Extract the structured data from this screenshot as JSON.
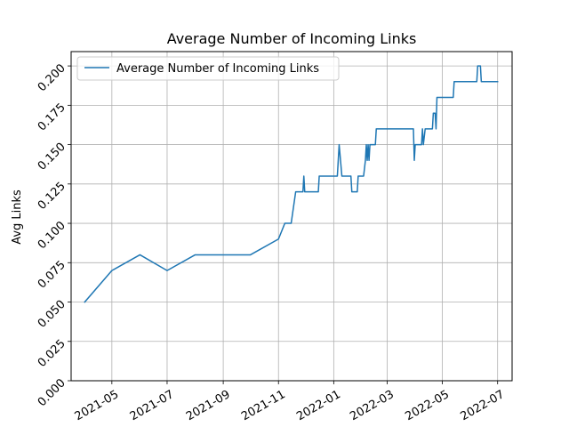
{
  "chart_data": {
    "type": "line",
    "title": "Average Number of Incoming Links",
    "xlabel": "",
    "ylabel": "Avg Links",
    "x_is_date": true,
    "xlim": [
      "2021-03-17",
      "2022-07-17"
    ],
    "ylim": [
      0.0,
      0.2091
    ],
    "grid": true,
    "legend_location": "top-left",
    "x_ticks": [
      "2021-05-01",
      "2021-07-01",
      "2021-09-01",
      "2021-11-01",
      "2022-01-01",
      "2022-03-01",
      "2022-05-01",
      "2022-07-01"
    ],
    "x_tick_labels": [
      "2021-05",
      "2021-07",
      "2021-09",
      "2021-11",
      "2022-01",
      "2022-03",
      "2022-05",
      "2022-07"
    ],
    "y_ticks": [
      0.0,
      0.025,
      0.05,
      0.075,
      0.1,
      0.125,
      0.15,
      0.175,
      0.2
    ],
    "y_tick_labels": [
      "0.000",
      "0.025",
      "0.050",
      "0.075",
      "0.100",
      "0.125",
      "0.150",
      "0.175",
      "0.200"
    ],
    "series": [
      {
        "name": "Average Number of Incoming Links",
        "color": "#1f77b4",
        "x": [
          "2021-04-01",
          "2021-05-01",
          "2021-06-01",
          "2021-07-01",
          "2021-08-01",
          "2021-10-01",
          "2021-11-01",
          "2021-11-08",
          "2021-11-15",
          "2021-11-20",
          "2021-11-28",
          "2021-11-29",
          "2021-11-30",
          "2021-12-01",
          "2021-12-15",
          "2021-12-16",
          "2021-12-17",
          "2022-01-05",
          "2022-01-06",
          "2022-01-07",
          "2022-01-10",
          "2022-01-20",
          "2022-01-21",
          "2022-01-27",
          "2022-01-28",
          "2022-02-03",
          "2022-02-05",
          "2022-02-06",
          "2022-02-07",
          "2022-02-08",
          "2022-02-09",
          "2022-02-10",
          "2022-02-11",
          "2022-02-12",
          "2022-02-16",
          "2022-02-17",
          "2022-02-28",
          "2022-03-01",
          "2022-03-30",
          "2022-03-31",
          "2022-04-01",
          "2022-04-08",
          "2022-04-09",
          "2022-04-10",
          "2022-04-12",
          "2022-04-13",
          "2022-04-20",
          "2022-04-21",
          "2022-04-23",
          "2022-04-24",
          "2022-04-25",
          "2022-04-28",
          "2022-05-13",
          "2022-05-14",
          "2022-06-08",
          "2022-06-09",
          "2022-06-12",
          "2022-06-13",
          "2022-07-01"
        ],
        "y": [
          0.05,
          0.07,
          0.08,
          0.07,
          0.08,
          0.08,
          0.09,
          0.1,
          0.1,
          0.12,
          0.12,
          0.13,
          0.12,
          0.12,
          0.12,
          0.13,
          0.13,
          0.13,
          0.14,
          0.15,
          0.13,
          0.13,
          0.12,
          0.12,
          0.13,
          0.13,
          0.14,
          0.15,
          0.14,
          0.15,
          0.14,
          0.15,
          0.15,
          0.15,
          0.15,
          0.16,
          0.16,
          0.16,
          0.16,
          0.14,
          0.15,
          0.15,
          0.16,
          0.15,
          0.16,
          0.16,
          0.16,
          0.17,
          0.17,
          0.16,
          0.18,
          0.18,
          0.18,
          0.19,
          0.19,
          0.2,
          0.2,
          0.19,
          0.19
        ]
      }
    ]
  }
}
